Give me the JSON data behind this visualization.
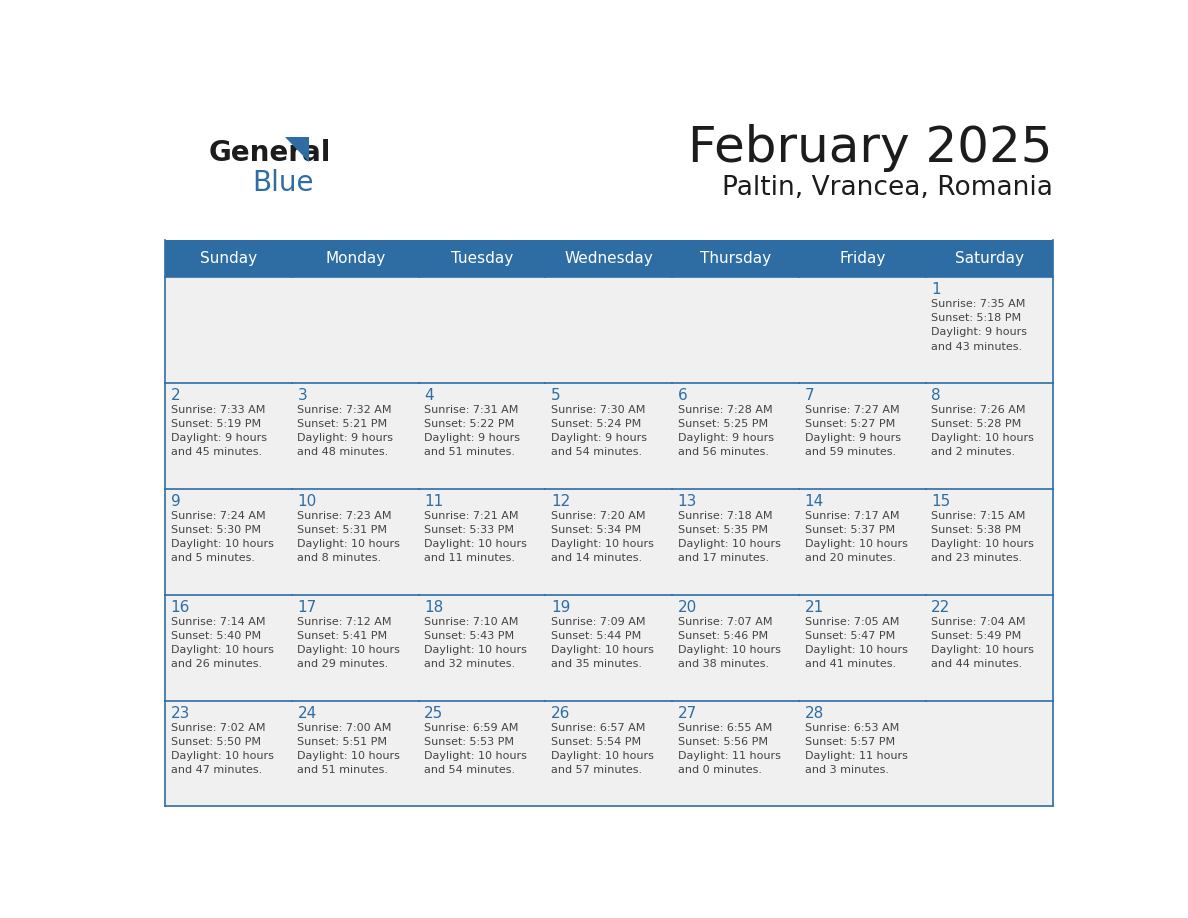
{
  "title": "February 2025",
  "subtitle": "Paltin, Vrancea, Romania",
  "days_of_week": [
    "Sunday",
    "Monday",
    "Tuesday",
    "Wednesday",
    "Thursday",
    "Friday",
    "Saturday"
  ],
  "header_bg": "#2E6DA4",
  "header_text": "#FFFFFF",
  "cell_bg_light": "#F0F0F0",
  "grid_line_color": "#2E6DA4",
  "day_number_color": "#2E6DA4",
  "text_color": "#444444",
  "calendar_data": [
    [
      null,
      null,
      null,
      null,
      null,
      null,
      {
        "day": 1,
        "sunrise": "7:35 AM",
        "sunset": "5:18 PM",
        "daylight": "9 hours\nand 43 minutes."
      }
    ],
    [
      {
        "day": 2,
        "sunrise": "7:33 AM",
        "sunset": "5:19 PM",
        "daylight": "9 hours\nand 45 minutes."
      },
      {
        "day": 3,
        "sunrise": "7:32 AM",
        "sunset": "5:21 PM",
        "daylight": "9 hours\nand 48 minutes."
      },
      {
        "day": 4,
        "sunrise": "7:31 AM",
        "sunset": "5:22 PM",
        "daylight": "9 hours\nand 51 minutes."
      },
      {
        "day": 5,
        "sunrise": "7:30 AM",
        "sunset": "5:24 PM",
        "daylight": "9 hours\nand 54 minutes."
      },
      {
        "day": 6,
        "sunrise": "7:28 AM",
        "sunset": "5:25 PM",
        "daylight": "9 hours\nand 56 minutes."
      },
      {
        "day": 7,
        "sunrise": "7:27 AM",
        "sunset": "5:27 PM",
        "daylight": "9 hours\nand 59 minutes."
      },
      {
        "day": 8,
        "sunrise": "7:26 AM",
        "sunset": "5:28 PM",
        "daylight": "10 hours\nand 2 minutes."
      }
    ],
    [
      {
        "day": 9,
        "sunrise": "7:24 AM",
        "sunset": "5:30 PM",
        "daylight": "10 hours\nand 5 minutes."
      },
      {
        "day": 10,
        "sunrise": "7:23 AM",
        "sunset": "5:31 PM",
        "daylight": "10 hours\nand 8 minutes."
      },
      {
        "day": 11,
        "sunrise": "7:21 AM",
        "sunset": "5:33 PM",
        "daylight": "10 hours\nand 11 minutes."
      },
      {
        "day": 12,
        "sunrise": "7:20 AM",
        "sunset": "5:34 PM",
        "daylight": "10 hours\nand 14 minutes."
      },
      {
        "day": 13,
        "sunrise": "7:18 AM",
        "sunset": "5:35 PM",
        "daylight": "10 hours\nand 17 minutes."
      },
      {
        "day": 14,
        "sunrise": "7:17 AM",
        "sunset": "5:37 PM",
        "daylight": "10 hours\nand 20 minutes."
      },
      {
        "day": 15,
        "sunrise": "7:15 AM",
        "sunset": "5:38 PM",
        "daylight": "10 hours\nand 23 minutes."
      }
    ],
    [
      {
        "day": 16,
        "sunrise": "7:14 AM",
        "sunset": "5:40 PM",
        "daylight": "10 hours\nand 26 minutes."
      },
      {
        "day": 17,
        "sunrise": "7:12 AM",
        "sunset": "5:41 PM",
        "daylight": "10 hours\nand 29 minutes."
      },
      {
        "day": 18,
        "sunrise": "7:10 AM",
        "sunset": "5:43 PM",
        "daylight": "10 hours\nand 32 minutes."
      },
      {
        "day": 19,
        "sunrise": "7:09 AM",
        "sunset": "5:44 PM",
        "daylight": "10 hours\nand 35 minutes."
      },
      {
        "day": 20,
        "sunrise": "7:07 AM",
        "sunset": "5:46 PM",
        "daylight": "10 hours\nand 38 minutes."
      },
      {
        "day": 21,
        "sunrise": "7:05 AM",
        "sunset": "5:47 PM",
        "daylight": "10 hours\nand 41 minutes."
      },
      {
        "day": 22,
        "sunrise": "7:04 AM",
        "sunset": "5:49 PM",
        "daylight": "10 hours\nand 44 minutes."
      }
    ],
    [
      {
        "day": 23,
        "sunrise": "7:02 AM",
        "sunset": "5:50 PM",
        "daylight": "10 hours\nand 47 minutes."
      },
      {
        "day": 24,
        "sunrise": "7:00 AM",
        "sunset": "5:51 PM",
        "daylight": "10 hours\nand 51 minutes."
      },
      {
        "day": 25,
        "sunrise": "6:59 AM",
        "sunset": "5:53 PM",
        "daylight": "10 hours\nand 54 minutes."
      },
      {
        "day": 26,
        "sunrise": "6:57 AM",
        "sunset": "5:54 PM",
        "daylight": "10 hours\nand 57 minutes."
      },
      {
        "day": 27,
        "sunrise": "6:55 AM",
        "sunset": "5:56 PM",
        "daylight": "11 hours\nand 0 minutes."
      },
      {
        "day": 28,
        "sunrise": "6:53 AM",
        "sunset": "5:57 PM",
        "daylight": "11 hours\nand 3 minutes."
      },
      null
    ]
  ]
}
